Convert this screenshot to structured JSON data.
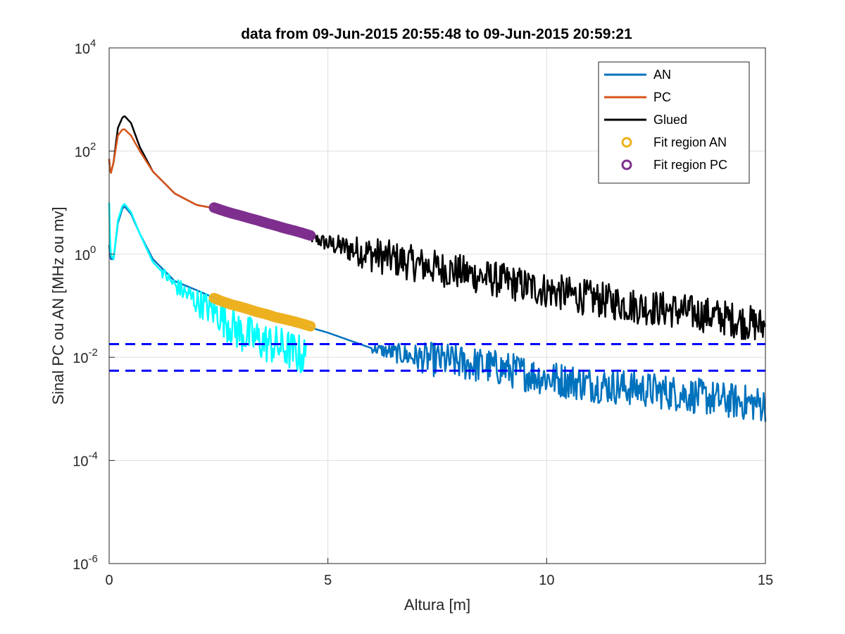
{
  "chart_data": {
    "type": "line",
    "title": "data from 09-Jun-2015 20:55:48 to 09-Jun-2015 20:59:21",
    "xlabel": "Altura [m]",
    "ylabel": "Sinal PC ou AN [MHz ou mv]",
    "xlim": [
      0,
      15
    ],
    "ylim": [
      1e-06,
      10000
    ],
    "yscale": "log",
    "grid": true,
    "legend_position": "top-right",
    "x_ticks": [
      {
        "value": 0,
        "label": "0"
      },
      {
        "value": 5,
        "label": "5"
      },
      {
        "value": 10,
        "label": "10"
      },
      {
        "value": 15,
        "label": "15"
      }
    ],
    "y_ticks": [
      {
        "value": 1e-06,
        "base": "10",
        "exp": "-6"
      },
      {
        "value": 0.0001,
        "base": "10",
        "exp": "-4"
      },
      {
        "value": 0.01,
        "base": "10",
        "exp": "-2"
      },
      {
        "value": 1,
        "base": "10",
        "exp": "0"
      },
      {
        "value": 100,
        "base": "10",
        "exp": "2"
      },
      {
        "value": 10000,
        "base": "10",
        "exp": "4"
      }
    ],
    "series": [
      {
        "name": "AN",
        "color": "#0072BD",
        "style": "line",
        "x": [
          0,
          0.03,
          0.1,
          0.2,
          0.3,
          0.35,
          0.5,
          0.7,
          1.0,
          1.5,
          2.0,
          2.5,
          3.0,
          3.5,
          4.0,
          4.5,
          5.0,
          6.0,
          7.0,
          8.0,
          9.0,
          10.0,
          11.0,
          12.0,
          13.0,
          14.0,
          15.0
        ],
        "y": [
          1.5,
          0.8,
          0.8,
          4.0,
          7.5,
          8.5,
          6.0,
          2.5,
          0.8,
          0.3,
          0.2,
          0.13,
          0.1,
          0.07,
          0.05,
          0.04,
          0.03,
          0.015,
          0.01,
          0.008,
          0.006,
          0.004,
          0.003,
          0.0025,
          0.002,
          0.0015,
          0.0012
        ],
        "noise_from_x": 6,
        "noise_amplitude": 0.35
      },
      {
        "name": "PC",
        "color": "#D95319",
        "style": "line",
        "x": [
          0,
          0.03,
          0.1,
          0.2,
          0.3,
          0.35,
          0.5,
          0.7,
          1.0,
          1.5,
          2.0,
          2.5
        ],
        "y": [
          70,
          35,
          60,
          200,
          260,
          265,
          200,
          100,
          40,
          15,
          9,
          7.5
        ]
      },
      {
        "name": "Glued",
        "color": "#000000",
        "style": "line",
        "x": [
          0,
          0.03,
          0.1,
          0.2,
          0.3,
          0.35,
          0.5,
          0.7,
          1.0,
          1.5,
          2.0,
          2.5,
          3.0,
          3.5,
          4.0,
          4.5,
          5.0,
          6.0,
          7.0,
          8.0,
          9.0,
          10.0,
          11.0,
          12.0,
          13.0,
          14.0,
          15.0
        ],
        "y": [
          70,
          35,
          60,
          280,
          440,
          480,
          350,
          120,
          40,
          15,
          9,
          7.5,
          5.5,
          4.0,
          3.0,
          2.3,
          1.6,
          1.0,
          0.65,
          0.45,
          0.3,
          0.2,
          0.14,
          0.1,
          0.08,
          0.06,
          0.04
        ],
        "noise_from_x": 4.5,
        "noise_amplitude": 0.35
      },
      {
        "name": "Fit region AN",
        "color": "#EDB120",
        "style": "markers",
        "x": [
          2.4,
          2.6,
          2.8,
          3.0,
          3.2,
          3.4,
          3.6,
          3.8,
          4.0,
          4.2,
          4.4,
          4.6
        ],
        "y": [
          0.14,
          0.12,
          0.105,
          0.095,
          0.085,
          0.075,
          0.068,
          0.06,
          0.055,
          0.05,
          0.045,
          0.04
        ]
      },
      {
        "name": "Fit region PC",
        "color": "#7E2F8E",
        "style": "markers",
        "x": [
          2.4,
          2.6,
          2.8,
          3.0,
          3.2,
          3.4,
          3.6,
          3.8,
          4.0,
          4.2,
          4.4,
          4.6
        ],
        "y": [
          8.0,
          7.0,
          6.2,
          5.6,
          5.0,
          4.5,
          4.0,
          3.6,
          3.2,
          2.9,
          2.6,
          2.3
        ]
      },
      {
        "color": "#00FFFF",
        "style": "line",
        "x": [
          0,
          0.03,
          0.1,
          0.2,
          0.3,
          0.35,
          0.5,
          0.7,
          1.0,
          1.5,
          2.0,
          2.5,
          3.0,
          3.5,
          4.0,
          4.5
        ],
        "y": [
          10,
          1.0,
          0.8,
          4.5,
          8.5,
          9.5,
          6.5,
          2.5,
          0.7,
          0.25,
          0.12,
          0.07,
          0.03,
          0.02,
          0.015,
          0.01
        ],
        "noise_from_x": 1.2,
        "noise_amplitude": 0.4
      },
      {
        "color": "#0000FF",
        "style": "dashed-hline",
        "x": [
          0,
          15
        ],
        "y": [
          0.018,
          0.018
        ]
      },
      {
        "color": "#0000FF",
        "style": "dashed-hline",
        "x": [
          0,
          15
        ],
        "y": [
          0.0055,
          0.0055
        ]
      }
    ]
  }
}
